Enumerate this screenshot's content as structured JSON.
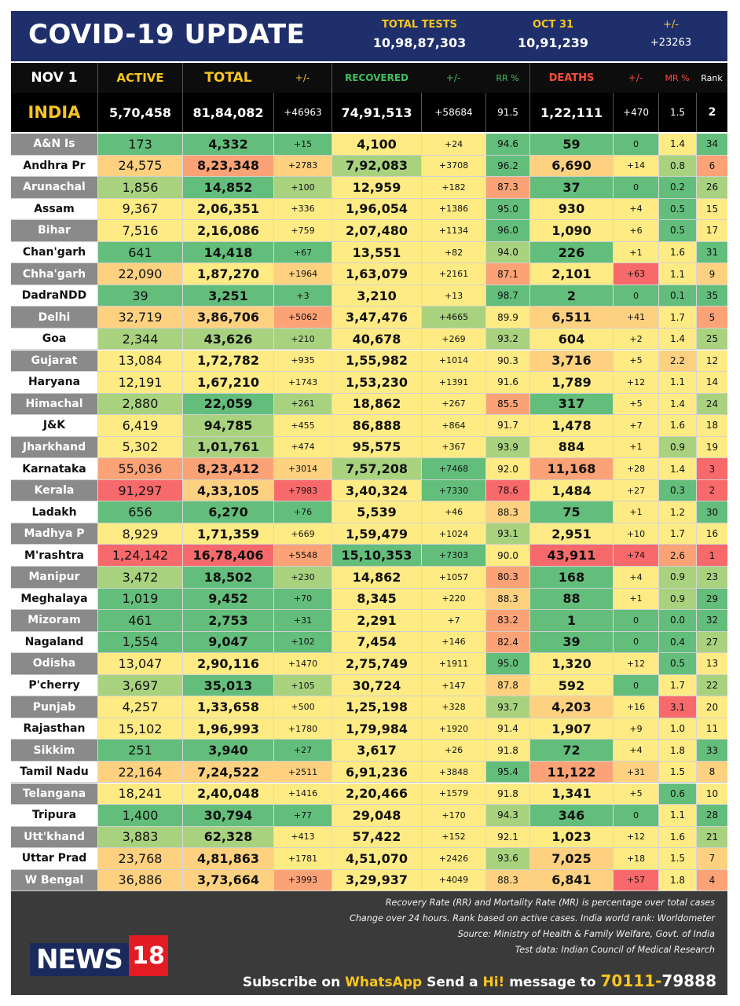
{
  "header": {
    "title": "COVID-19 UPDATE",
    "total_tests_label": "TOTAL TESTS",
    "total_tests_value": "10,98,87,303",
    "oct31_label": "OCT 31",
    "oct31_value": "10,91,239",
    "change_label": "+/-",
    "change_value": "+23263"
  },
  "columns": {
    "date": "NOV 1",
    "active": "ACTIVE",
    "total": "TOTAL",
    "total_change": "+/-",
    "recovered": "RECOVERED",
    "recovered_change": "+/-",
    "rr": "RR %",
    "deaths": "DEATHS",
    "deaths_change": "+/-",
    "mr": "MR %",
    "rank": "Rank"
  },
  "india": {
    "name": "INDIA",
    "active": "5,70,458",
    "total": "81,84,082",
    "total_change": "+46963",
    "recovered": "74,91,513",
    "recovered_change": "+58684",
    "rr": "91.5",
    "deaths": "1,22,111",
    "deaths_change": "+470",
    "mr": "1.5",
    "rank": "2"
  },
  "colors": {
    "green": "#63be7b",
    "light_green": "#a9d27f",
    "yellow": "#ffeb84",
    "light_orange": "#fdd17f",
    "orange": "#fba276",
    "red": "#f8696b",
    "navy": "#1f2f6b",
    "gold": "#f7c520",
    "recovered_green": "#3fbf5f",
    "deaths_red": "#ff4b3a"
  },
  "rows": [
    {
      "state": "A&N Is",
      "active": "173",
      "total": "4,332",
      "tc": "+15",
      "rec": "4,100",
      "rc": "+24",
      "rr": "94.6",
      "deaths": "59",
      "dc": "0",
      "mr": "1.4",
      "rank": "34",
      "shade": true,
      "c": [
        "g",
        "g",
        "g",
        "y",
        "y",
        "g",
        "g",
        "g",
        "y",
        "g"
      ]
    },
    {
      "state": "Andhra Pr",
      "active": "24,575",
      "total": "8,23,348",
      "tc": "+2783",
      "rec": "7,92,083",
      "rc": "+3708",
      "rr": "96.2",
      "deaths": "6,690",
      "dc": "+14",
      "mr": "0.8",
      "rank": "6",
      "shade": false,
      "c": [
        "lo",
        "o",
        "lo",
        "lg",
        "y",
        "g",
        "lo",
        "y",
        "lg",
        "o"
      ]
    },
    {
      "state": "Arunachal",
      "active": "1,856",
      "total": "14,852",
      "tc": "+100",
      "rec": "12,959",
      "rc": "+182",
      "rr": "87.3",
      "deaths": "37",
      "dc": "0",
      "mr": "0.2",
      "rank": "26",
      "shade": true,
      "c": [
        "lg",
        "g",
        "lg",
        "y",
        "y",
        "o",
        "g",
        "g",
        "g",
        "lg"
      ]
    },
    {
      "state": "Assam",
      "active": "9,367",
      "total": "2,06,351",
      "tc": "+336",
      "rec": "1,96,054",
      "rc": "+1386",
      "rr": "95.0",
      "deaths": "930",
      "dc": "+4",
      "mr": "0.5",
      "rank": "15",
      "shade": false,
      "c": [
        "y",
        "y",
        "y",
        "y",
        "y",
        "g",
        "y",
        "y",
        "g",
        "y"
      ]
    },
    {
      "state": "Bihar",
      "active": "7,516",
      "total": "2,16,086",
      "tc": "+759",
      "rec": "2,07,480",
      "rc": "+1134",
      "rr": "96.0",
      "deaths": "1,090",
      "dc": "+6",
      "mr": "0.5",
      "rank": "17",
      "shade": true,
      "c": [
        "y",
        "y",
        "y",
        "y",
        "y",
        "g",
        "y",
        "y",
        "g",
        "y"
      ]
    },
    {
      "state": "Chan'garh",
      "active": "641",
      "total": "14,418",
      "tc": "+67",
      "rec": "13,551",
      "rc": "+82",
      "rr": "94.0",
      "deaths": "226",
      "dc": "+1",
      "mr": "1.6",
      "rank": "31",
      "shade": false,
      "c": [
        "g",
        "g",
        "g",
        "y",
        "y",
        "lg",
        "g",
        "y",
        "y",
        "g"
      ]
    },
    {
      "state": "Chha'garh",
      "active": "22,090",
      "total": "1,87,270",
      "tc": "+1964",
      "rec": "1,63,079",
      "rc": "+2161",
      "rr": "87.1",
      "deaths": "2,101",
      "dc": "+63",
      "mr": "1.1",
      "rank": "9",
      "shade": true,
      "c": [
        "lo",
        "y",
        "lo",
        "y",
        "y",
        "o",
        "y",
        "r",
        "y",
        "lo"
      ]
    },
    {
      "state": "DadraNDD",
      "active": "39",
      "total": "3,251",
      "tc": "+3",
      "rec": "3,210",
      "rc": "+13",
      "rr": "98.7",
      "deaths": "2",
      "dc": "0",
      "mr": "0.1",
      "rank": "35",
      "shade": false,
      "c": [
        "g",
        "g",
        "g",
        "y",
        "y",
        "g",
        "g",
        "g",
        "g",
        "g"
      ]
    },
    {
      "state": "Delhi",
      "active": "32,719",
      "total": "3,86,706",
      "tc": "+5062",
      "rec": "3,47,476",
      "rc": "+4665",
      "rr": "89.9",
      "deaths": "6,511",
      "dc": "+41",
      "mr": "1.7",
      "rank": "5",
      "shade": true,
      "c": [
        "lo",
        "lo",
        "o",
        "y",
        "lg",
        "y",
        "lo",
        "lo",
        "y",
        "o"
      ]
    },
    {
      "state": "Goa",
      "active": "2,344",
      "total": "43,626",
      "tc": "+210",
      "rec": "40,678",
      "rc": "+269",
      "rr": "93.2",
      "deaths": "604",
      "dc": "+2",
      "mr": "1.4",
      "rank": "25",
      "shade": false,
      "c": [
        "lg",
        "lg",
        "lg",
        "y",
        "y",
        "lg",
        "y",
        "y",
        "y",
        "lg"
      ]
    },
    {
      "state": "Gujarat",
      "active": "13,084",
      "total": "1,72,782",
      "tc": "+935",
      "rec": "1,55,982",
      "rc": "+1014",
      "rr": "90.3",
      "deaths": "3,716",
      "dc": "+5",
      "mr": "2.2",
      "rank": "12",
      "shade": true,
      "c": [
        "y",
        "y",
        "y",
        "y",
        "y",
        "y",
        "lo",
        "y",
        "lo",
        "y"
      ]
    },
    {
      "state": "Haryana",
      "active": "12,191",
      "total": "1,67,210",
      "tc": "+1743",
      "rec": "1,53,230",
      "rc": "+1391",
      "rr": "91.6",
      "deaths": "1,789",
      "dc": "+12",
      "mr": "1.1",
      "rank": "14",
      "shade": false,
      "c": [
        "y",
        "y",
        "y",
        "y",
        "y",
        "y",
        "y",
        "y",
        "y",
        "y"
      ]
    },
    {
      "state": "Himachal",
      "active": "2,880",
      "total": "22,059",
      "tc": "+261",
      "rec": "18,862",
      "rc": "+267",
      "rr": "85.5",
      "deaths": "317",
      "dc": "+5",
      "mr": "1.4",
      "rank": "24",
      "shade": true,
      "c": [
        "lg",
        "g",
        "lg",
        "y",
        "y",
        "o",
        "g",
        "y",
        "y",
        "lg"
      ]
    },
    {
      "state": "J&K",
      "active": "6,419",
      "total": "94,785",
      "tc": "+455",
      "rec": "86,888",
      "rc": "+864",
      "rr": "91.7",
      "deaths": "1,478",
      "dc": "+7",
      "mr": "1.6",
      "rank": "18",
      "shade": false,
      "c": [
        "y",
        "lg",
        "y",
        "y",
        "y",
        "y",
        "y",
        "y",
        "y",
        "y"
      ]
    },
    {
      "state": "Jharkhand",
      "active": "5,302",
      "total": "1,01,761",
      "tc": "+474",
      "rec": "95,575",
      "rc": "+367",
      "rr": "93.9",
      "deaths": "884",
      "dc": "+1",
      "mr": "0.9",
      "rank": "19",
      "shade": true,
      "c": [
        "y",
        "lg",
        "y",
        "y",
        "y",
        "lg",
        "y",
        "y",
        "lg",
        "y"
      ]
    },
    {
      "state": "Karnataka",
      "active": "55,036",
      "total": "8,23,412",
      "tc": "+3014",
      "rec": "7,57,208",
      "rc": "+7468",
      "rr": "92.0",
      "deaths": "11,168",
      "dc": "+28",
      "mr": "1.4",
      "rank": "3",
      "shade": false,
      "c": [
        "o",
        "o",
        "lo",
        "lg",
        "g",
        "y",
        "o",
        "y",
        "y",
        "r"
      ]
    },
    {
      "state": "Kerala",
      "active": "91,297",
      "total": "4,33,105",
      "tc": "+7983",
      "rec": "3,40,324",
      "rc": "+7330",
      "rr": "78.6",
      "deaths": "1,484",
      "dc": "+27",
      "mr": "0.3",
      "rank": "2",
      "shade": true,
      "c": [
        "r",
        "lo",
        "r",
        "y",
        "g",
        "r",
        "y",
        "y",
        "g",
        "r"
      ]
    },
    {
      "state": "Ladakh",
      "active": "656",
      "total": "6,270",
      "tc": "+76",
      "rec": "5,539",
      "rc": "+46",
      "rr": "88.3",
      "deaths": "75",
      "dc": "+1",
      "mr": "1.2",
      "rank": "30",
      "shade": false,
      "c": [
        "g",
        "g",
        "g",
        "y",
        "y",
        "lo",
        "g",
        "y",
        "y",
        "g"
      ]
    },
    {
      "state": "Madhya P",
      "active": "8,929",
      "total": "1,71,359",
      "tc": "+669",
      "rec": "1,59,479",
      "rc": "+1024",
      "rr": "93.1",
      "deaths": "2,951",
      "dc": "+10",
      "mr": "1.7",
      "rank": "16",
      "shade": true,
      "c": [
        "y",
        "y",
        "y",
        "y",
        "y",
        "lg",
        "y",
        "y",
        "y",
        "y"
      ]
    },
    {
      "state": "M'rashtra",
      "active": "1,24,142",
      "total": "16,78,406",
      "tc": "+5548",
      "rec": "15,10,353",
      "rc": "+7303",
      "rr": "90.0",
      "deaths": "43,911",
      "dc": "+74",
      "mr": "2.6",
      "rank": "1",
      "shade": false,
      "c": [
        "r",
        "r",
        "o",
        "g",
        "g",
        "y",
        "r",
        "r",
        "o",
        "r"
      ]
    },
    {
      "state": "Manipur",
      "active": "3,472",
      "total": "18,502",
      "tc": "+230",
      "rec": "14,862",
      "rc": "+1057",
      "rr": "80.3",
      "deaths": "168",
      "dc": "+4",
      "mr": "0.9",
      "rank": "23",
      "shade": true,
      "c": [
        "lg",
        "g",
        "lg",
        "y",
        "y",
        "o",
        "g",
        "y",
        "lg",
        "lg"
      ]
    },
    {
      "state": "Meghalaya",
      "active": "1,019",
      "total": "9,452",
      "tc": "+70",
      "rec": "8,345",
      "rc": "+220",
      "rr": "88.3",
      "deaths": "88",
      "dc": "+1",
      "mr": "0.9",
      "rank": "29",
      "shade": false,
      "c": [
        "g",
        "g",
        "g",
        "y",
        "y",
        "lo",
        "g",
        "y",
        "lg",
        "g"
      ]
    },
    {
      "state": "Mizoram",
      "active": "461",
      "total": "2,753",
      "tc": "+31",
      "rec": "2,291",
      "rc": "+7",
      "rr": "83.2",
      "deaths": "1",
      "dc": "0",
      "mr": "0.0",
      "rank": "32",
      "shade": true,
      "c": [
        "g",
        "g",
        "g",
        "y",
        "y",
        "o",
        "g",
        "g",
        "g",
        "g"
      ]
    },
    {
      "state": "Nagaland",
      "active": "1,554",
      "total": "9,047",
      "tc": "+102",
      "rec": "7,454",
      "rc": "+146",
      "rr": "82.4",
      "deaths": "39",
      "dc": "0",
      "mr": "0.4",
      "rank": "27",
      "shade": false,
      "c": [
        "g",
        "g",
        "g",
        "y",
        "y",
        "o",
        "g",
        "g",
        "g",
        "lg"
      ]
    },
    {
      "state": "Odisha",
      "active": "13,047",
      "total": "2,90,116",
      "tc": "+1470",
      "rec": "2,75,749",
      "rc": "+1911",
      "rr": "95.0",
      "deaths": "1,320",
      "dc": "+12",
      "mr": "0.5",
      "rank": "13",
      "shade": true,
      "c": [
        "y",
        "y",
        "y",
        "y",
        "y",
        "g",
        "y",
        "y",
        "g",
        "y"
      ]
    },
    {
      "state": "P'cherry",
      "active": "3,697",
      "total": "35,013",
      "tc": "+105",
      "rec": "30,724",
      "rc": "+147",
      "rr": "87.8",
      "deaths": "592",
      "dc": "0",
      "mr": "1.7",
      "rank": "22",
      "shade": false,
      "c": [
        "lg",
        "g",
        "lg",
        "y",
        "y",
        "lo",
        "y",
        "g",
        "y",
        "lg"
      ]
    },
    {
      "state": "Punjab",
      "active": "4,257",
      "total": "1,33,658",
      "tc": "+500",
      "rec": "1,25,198",
      "rc": "+328",
      "rr": "93.7",
      "deaths": "4,203",
      "dc": "+16",
      "mr": "3.1",
      "rank": "20",
      "shade": true,
      "c": [
        "y",
        "y",
        "y",
        "y",
        "y",
        "lg",
        "lo",
        "y",
        "r",
        "y"
      ]
    },
    {
      "state": "Rajasthan",
      "active": "15,102",
      "total": "1,96,993",
      "tc": "+1780",
      "rec": "1,79,984",
      "rc": "+1920",
      "rr": "91.4",
      "deaths": "1,907",
      "dc": "+9",
      "mr": "1.0",
      "rank": "11",
      "shade": false,
      "c": [
        "y",
        "y",
        "y",
        "y",
        "y",
        "y",
        "y",
        "y",
        "y",
        "y"
      ]
    },
    {
      "state": "Sikkim",
      "active": "251",
      "total": "3,940",
      "tc": "+27",
      "rec": "3,617",
      "rc": "+26",
      "rr": "91.8",
      "deaths": "72",
      "dc": "+4",
      "mr": "1.8",
      "rank": "33",
      "shade": true,
      "c": [
        "g",
        "g",
        "g",
        "y",
        "y",
        "y",
        "g",
        "y",
        "y",
        "g"
      ]
    },
    {
      "state": "Tamil Nadu",
      "active": "22,164",
      "total": "7,24,522",
      "tc": "+2511",
      "rec": "6,91,236",
      "rc": "+3848",
      "rr": "95.4",
      "deaths": "11,122",
      "dc": "+31",
      "mr": "1.5",
      "rank": "8",
      "shade": false,
      "c": [
        "lo",
        "lo",
        "lo",
        "y",
        "y",
        "g",
        "o",
        "lo",
        "y",
        "lo"
      ]
    },
    {
      "state": "Telangana",
      "active": "18,241",
      "total": "2,40,048",
      "tc": "+1416",
      "rec": "2,20,466",
      "rc": "+1579",
      "rr": "91.8",
      "deaths": "1,341",
      "dc": "+5",
      "mr": "0.6",
      "rank": "10",
      "shade": true,
      "c": [
        "y",
        "y",
        "y",
        "y",
        "y",
        "y",
        "y",
        "y",
        "g",
        "y"
      ]
    },
    {
      "state": "Tripura",
      "active": "1,400",
      "total": "30,794",
      "tc": "+77",
      "rec": "29,048",
      "rc": "+170",
      "rr": "94.3",
      "deaths": "346",
      "dc": "0",
      "mr": "1.1",
      "rank": "28",
      "shade": false,
      "c": [
        "g",
        "g",
        "g",
        "y",
        "y",
        "lg",
        "g",
        "g",
        "y",
        "g"
      ]
    },
    {
      "state": "Utt'khand",
      "active": "3,883",
      "total": "62,328",
      "tc": "+413",
      "rec": "57,422",
      "rc": "+152",
      "rr": "92.1",
      "deaths": "1,023",
      "dc": "+12",
      "mr": "1.6",
      "rank": "21",
      "shade": true,
      "c": [
        "lg",
        "lg",
        "y",
        "y",
        "y",
        "y",
        "y",
        "y",
        "y",
        "lg"
      ]
    },
    {
      "state": "Uttar Prad",
      "active": "23,768",
      "total": "4,81,863",
      "tc": "+1781",
      "rec": "4,51,070",
      "rc": "+2426",
      "rr": "93.6",
      "deaths": "7,025",
      "dc": "+18",
      "mr": "1.5",
      "rank": "7",
      "shade": false,
      "c": [
        "lo",
        "lo",
        "y",
        "y",
        "y",
        "lg",
        "lo",
        "y",
        "y",
        "lo"
      ]
    },
    {
      "state": "W Bengal",
      "active": "36,886",
      "total": "3,73,664",
      "tc": "+3993",
      "rec": "3,29,937",
      "rc": "+4049",
      "rr": "88.3",
      "deaths": "6,841",
      "dc": "+57",
      "mr": "1.8",
      "rank": "4",
      "shade": true,
      "c": [
        "lo",
        "lo",
        "o",
        "y",
        "y",
        "lo",
        "lo",
        "r",
        "y",
        "o"
      ]
    }
  ],
  "footer": {
    "note1": "Recovery Rate (RR) and Mortality Rate (MR) is percentage over total cases",
    "note2": "Change over 24 hours. Rank based on active cases. India world rank: Worldometer",
    "note3": "Source: Ministry of Health & Family Welfare, Govt. of India",
    "note4": "Test data: Indian Council of Medical Research",
    "logo_text": "NEWS",
    "logo_num": "18",
    "subscribe_1": "Subscribe on",
    "subscribe_2": "WhatsApp",
    "subscribe_3": "Send a",
    "subscribe_4": "Hi!",
    "subscribe_5": "message to",
    "subscribe_6": "70111-",
    "subscribe_7": "79888"
  }
}
